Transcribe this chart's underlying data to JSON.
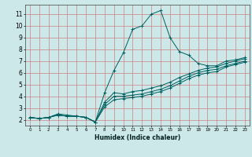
{
  "title": "",
  "xlabel": "Humidex (Indice chaleur)",
  "bg_color": "#cce8e8",
  "grid_color": "#d08080",
  "line_color": "#006060",
  "xlim": [
    -0.5,
    23.5
  ],
  "ylim": [
    1.5,
    11.8
  ],
  "xticks": [
    0,
    1,
    2,
    3,
    4,
    5,
    6,
    7,
    8,
    9,
    10,
    11,
    12,
    13,
    14,
    15,
    16,
    17,
    18,
    19,
    20,
    21,
    22,
    23
  ],
  "yticks": [
    2,
    3,
    4,
    5,
    6,
    7,
    8,
    9,
    10,
    11
  ],
  "series": [
    {
      "x": [
        0,
        1,
        2,
        3,
        4,
        5,
        6,
        7,
        8,
        9,
        10,
        11,
        12,
        13,
        14,
        15,
        16,
        17,
        18,
        19,
        20,
        21,
        22,
        23
      ],
      "y": [
        2.2,
        2.1,
        2.2,
        2.5,
        2.4,
        2.3,
        2.2,
        1.8,
        4.3,
        6.2,
        7.7,
        9.7,
        10.0,
        11.0,
        11.3,
        9.0,
        7.8,
        7.5,
        6.8,
        6.6,
        6.6,
        7.0,
        7.1,
        7.3
      ]
    },
    {
      "x": [
        0,
        1,
        2,
        3,
        4,
        5,
        6,
        7,
        8,
        9,
        10,
        11,
        12,
        13,
        14,
        15,
        16,
        17,
        18,
        19,
        20,
        21,
        22,
        23
      ],
      "y": [
        2.2,
        2.1,
        2.2,
        2.4,
        2.3,
        2.3,
        2.2,
        1.8,
        3.5,
        4.3,
        4.2,
        4.4,
        4.5,
        4.7,
        4.9,
        5.2,
        5.6,
        5.9,
        6.2,
        6.4,
        6.5,
        6.8,
        7.0,
        7.2
      ]
    },
    {
      "x": [
        0,
        1,
        2,
        3,
        4,
        5,
        6,
        7,
        8,
        9,
        10,
        11,
        12,
        13,
        14,
        15,
        16,
        17,
        18,
        19,
        20,
        21,
        22,
        23
      ],
      "y": [
        2.2,
        2.1,
        2.2,
        2.4,
        2.3,
        2.3,
        2.2,
        1.8,
        3.3,
        4.0,
        4.0,
        4.1,
        4.2,
        4.4,
        4.6,
        4.9,
        5.3,
        5.7,
        6.0,
        6.2,
        6.3,
        6.6,
        6.8,
        7.0
      ]
    },
    {
      "x": [
        0,
        1,
        2,
        3,
        4,
        5,
        6,
        7,
        8,
        9,
        10,
        11,
        12,
        13,
        14,
        15,
        16,
        17,
        18,
        19,
        20,
        21,
        22,
        23
      ],
      "y": [
        2.2,
        2.1,
        2.2,
        2.4,
        2.3,
        2.3,
        2.2,
        1.8,
        3.1,
        3.7,
        3.8,
        3.9,
        4.0,
        4.2,
        4.4,
        4.7,
        5.1,
        5.5,
        5.8,
        6.0,
        6.1,
        6.5,
        6.7,
        6.9
      ]
    }
  ]
}
